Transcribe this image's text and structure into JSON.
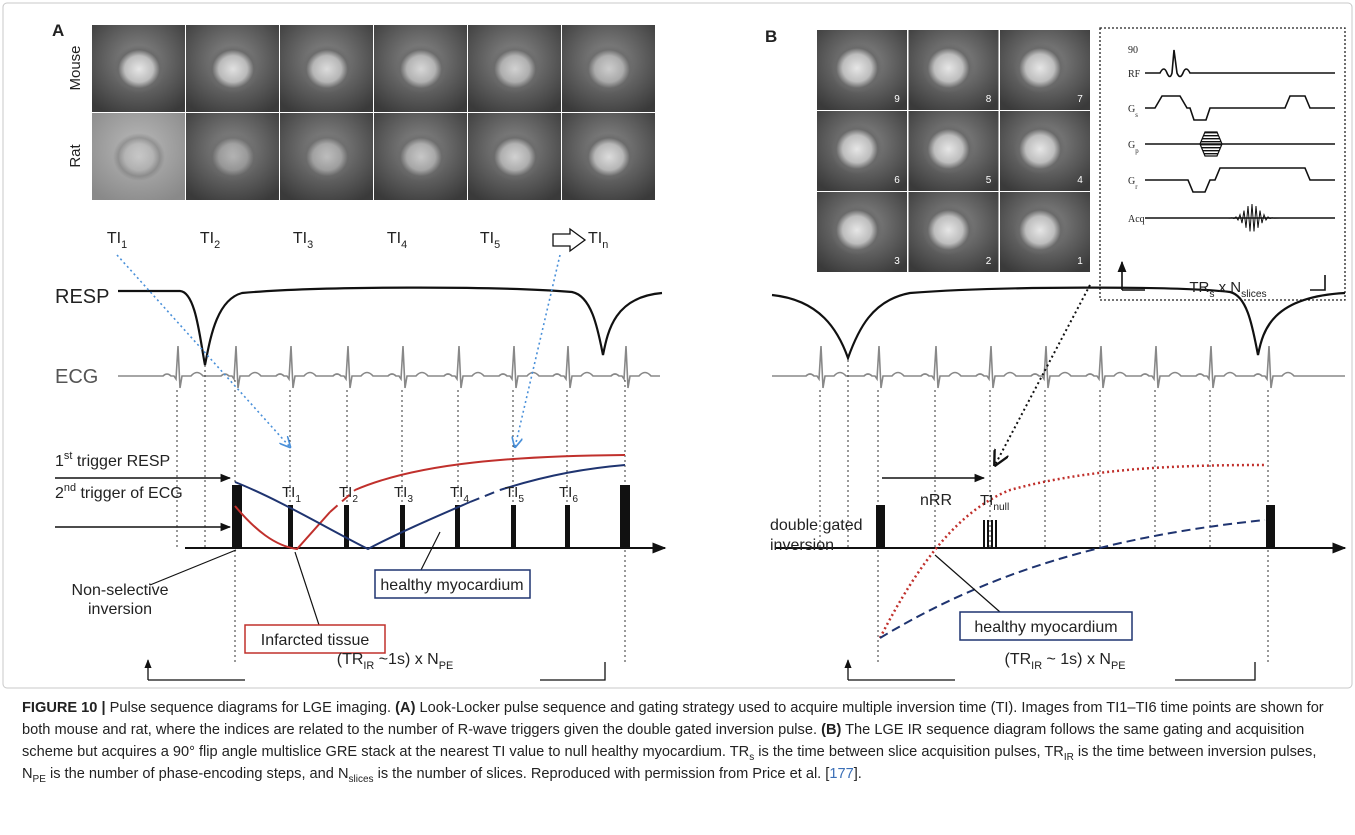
{
  "panel_a": {
    "label": "A",
    "row_labels": [
      "Mouse",
      "Rat"
    ],
    "image_labels": [
      [
        {
          "text": "TI"
        },
        {
          "text": "1",
          "sub": true
        }
      ],
      [
        {
          "text": "TI"
        },
        {
          "text": "2",
          "sub": true
        }
      ],
      [
        {
          "text": "TI"
        },
        {
          "text": "3",
          "sub": true
        }
      ],
      [
        {
          "text": "TI"
        },
        {
          "text": "4",
          "sub": true
        }
      ],
      [
        {
          "text": "TI"
        },
        {
          "text": "5",
          "sub": true
        }
      ],
      [
        {
          "text": "TI"
        },
        {
          "text": "n",
          "sub": true
        }
      ]
    ],
    "resp": "RESP",
    "ecg": "ECG",
    "trigger_resp": [
      {
        "text": "1"
      },
      {
        "text": "st",
        "sup": true
      },
      {
        "text": " trigger RESP"
      }
    ],
    "trigger_ecg": [
      {
        "text": "2"
      },
      {
        "text": "nd",
        "sup": true
      },
      {
        "text": " trigger of ECG"
      }
    ],
    "ti_markers": [
      [
        {
          "text": "TI"
        },
        {
          "text": "1",
          "sub": true
        }
      ],
      [
        {
          "text": "TI"
        },
        {
          "text": "2",
          "sub": true
        }
      ],
      [
        {
          "text": "TI"
        },
        {
          "text": "3",
          "sub": true
        }
      ],
      [
        {
          "text": "TI"
        },
        {
          "text": "4",
          "sub": true
        }
      ],
      [
        {
          "text": "TI"
        },
        {
          "text": "5",
          "sub": true
        }
      ],
      [
        {
          "text": "TI"
        },
        {
          "text": "6",
          "sub": true
        }
      ]
    ],
    "inversion": [
      "Non-selective",
      "inversion"
    ],
    "infarcted": "Infarcted tissue",
    "healthy": "healthy myocardium",
    "period": [
      {
        "text": "(TR"
      },
      {
        "text": "IR",
        "sub": true
      },
      {
        "text": " ~1s) x N"
      },
      {
        "text": "PE",
        "sub": true
      }
    ]
  },
  "panel_b": {
    "label": "B",
    "slice_numbers": [
      9,
      8,
      7,
      6,
      5,
      4,
      3,
      2,
      1
    ],
    "flip_angle": 90,
    "gradient_labels": [
      "RF",
      [
        {
          "text": "G"
        },
        {
          "text": "s",
          "sub": true
        }
      ],
      [
        {
          "text": "G"
        },
        {
          "text": "p",
          "sub": true
        }
      ],
      [
        {
          "text": "G"
        },
        {
          "text": "r",
          "sub": true
        }
      ],
      "Acq"
    ],
    "slices_period": [
      {
        "text": "TR"
      },
      {
        "text": "s",
        "sub": true
      },
      {
        "text": " x N"
      },
      {
        "text": "slices",
        "sub": true
      }
    ],
    "nrr": "nRR",
    "ti_null": [
      {
        "text": "TI"
      },
      {
        "text": "null",
        "sub": true
      }
    ],
    "inversion": [
      "double gated",
      "inversion"
    ],
    "healthy": "healthy myocardium",
    "period": [
      {
        "text": "(TR"
      },
      {
        "text": "IR",
        "sub": true
      },
      {
        "text": " ~  1s) x N"
      },
      {
        "text": "PE",
        "sub": true
      }
    ]
  },
  "caption": [
    {
      "text": "FIGURE 10 |",
      "bold": true
    },
    {
      "text": " Pulse sequence diagrams for LGE imaging. "
    },
    {
      "text": "(A)",
      "bold": true
    },
    {
      "text": " Look-Locker pulse sequence and gating strategy used to acquire multiple inversion time (TI). Images from TI1–TI6 time points are shown for both mouse and rat, where the indices are related to the number of R-wave triggers given the double gated inversion pulse. "
    },
    {
      "text": "(B)",
      "bold": true
    },
    {
      "text": " The LGE IR sequence diagram follows the same gating and acquisition scheme but acquires a 90° flip angle multislice GRE stack at the nearest TI value to null healthy myocardium. TR"
    },
    {
      "text": "s",
      "sub": true
    },
    {
      "text": " is the time between slice acquisition pulses, TR"
    },
    {
      "text": "IR",
      "sub": true
    },
    {
      "text": " is the time between inversion pulses, N"
    },
    {
      "text": "PE",
      "sub": true
    },
    {
      "text": " is the number of phase-encoding steps, and N"
    },
    {
      "text": "slices",
      "sub": true
    },
    {
      "text": " is the number of slices. Reproduced with permission from Price et al. ["
    },
    {
      "text": "177",
      "link": true
    },
    {
      "text": "]."
    }
  ]
}
